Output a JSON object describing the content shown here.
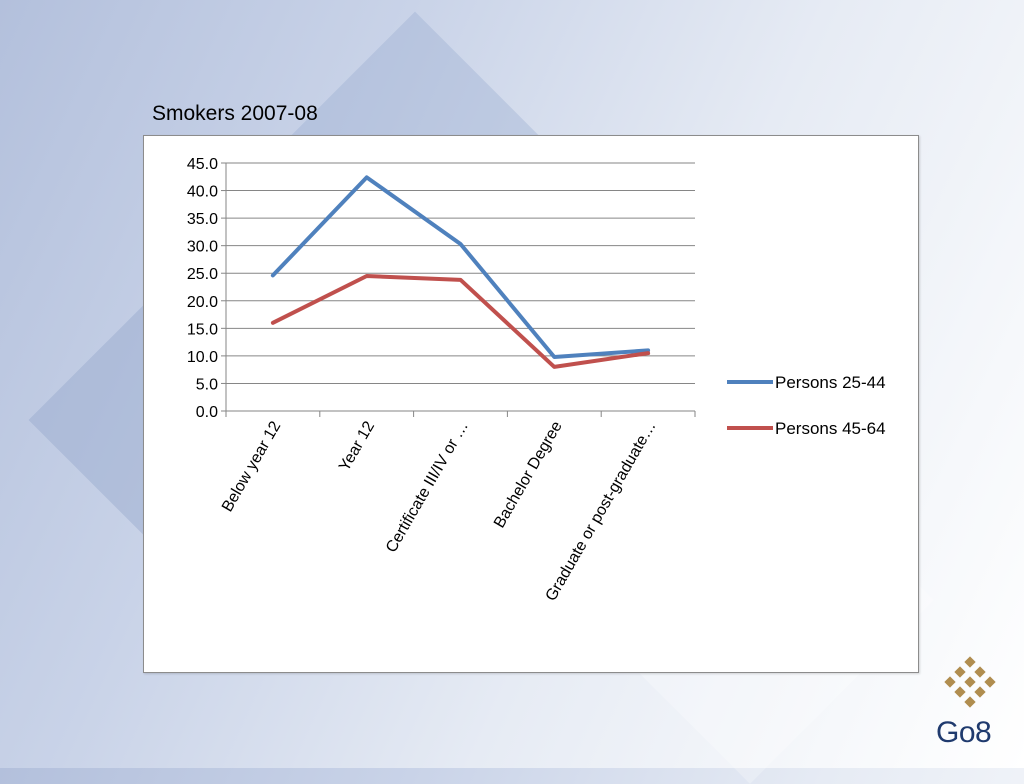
{
  "slide": {
    "title": "Smokers 2007-08",
    "logo_text": "Go8"
  },
  "colors": {
    "series1": "#4f81bd",
    "series2": "#c0504d",
    "logo_gold": "#b08d4f",
    "logo_text": "#1f3a6e"
  },
  "chart_data": {
    "type": "line",
    "title": "",
    "xlabel": "",
    "ylabel": "",
    "categories": [
      "Below year 12",
      "Year 12",
      "Certificate III/IV or …",
      "Bachelor Degree",
      "Graduate or post-graduate…"
    ],
    "series": [
      {
        "name": "Persons 25-44",
        "color": "#4f81bd",
        "values": [
          24.6,
          42.4,
          30.3,
          9.8,
          11.0
        ]
      },
      {
        "name": "Persons 45-64",
        "color": "#c0504d",
        "values": [
          16.0,
          24.5,
          23.8,
          8.0,
          10.5
        ]
      }
    ],
    "ylim": [
      0,
      45
    ],
    "yticks": [
      "0.0",
      "5.0",
      "10.0",
      "15.0",
      "20.0",
      "25.0",
      "30.0",
      "35.0",
      "40.0",
      "45.0"
    ],
    "grid": true,
    "legend": "right"
  }
}
